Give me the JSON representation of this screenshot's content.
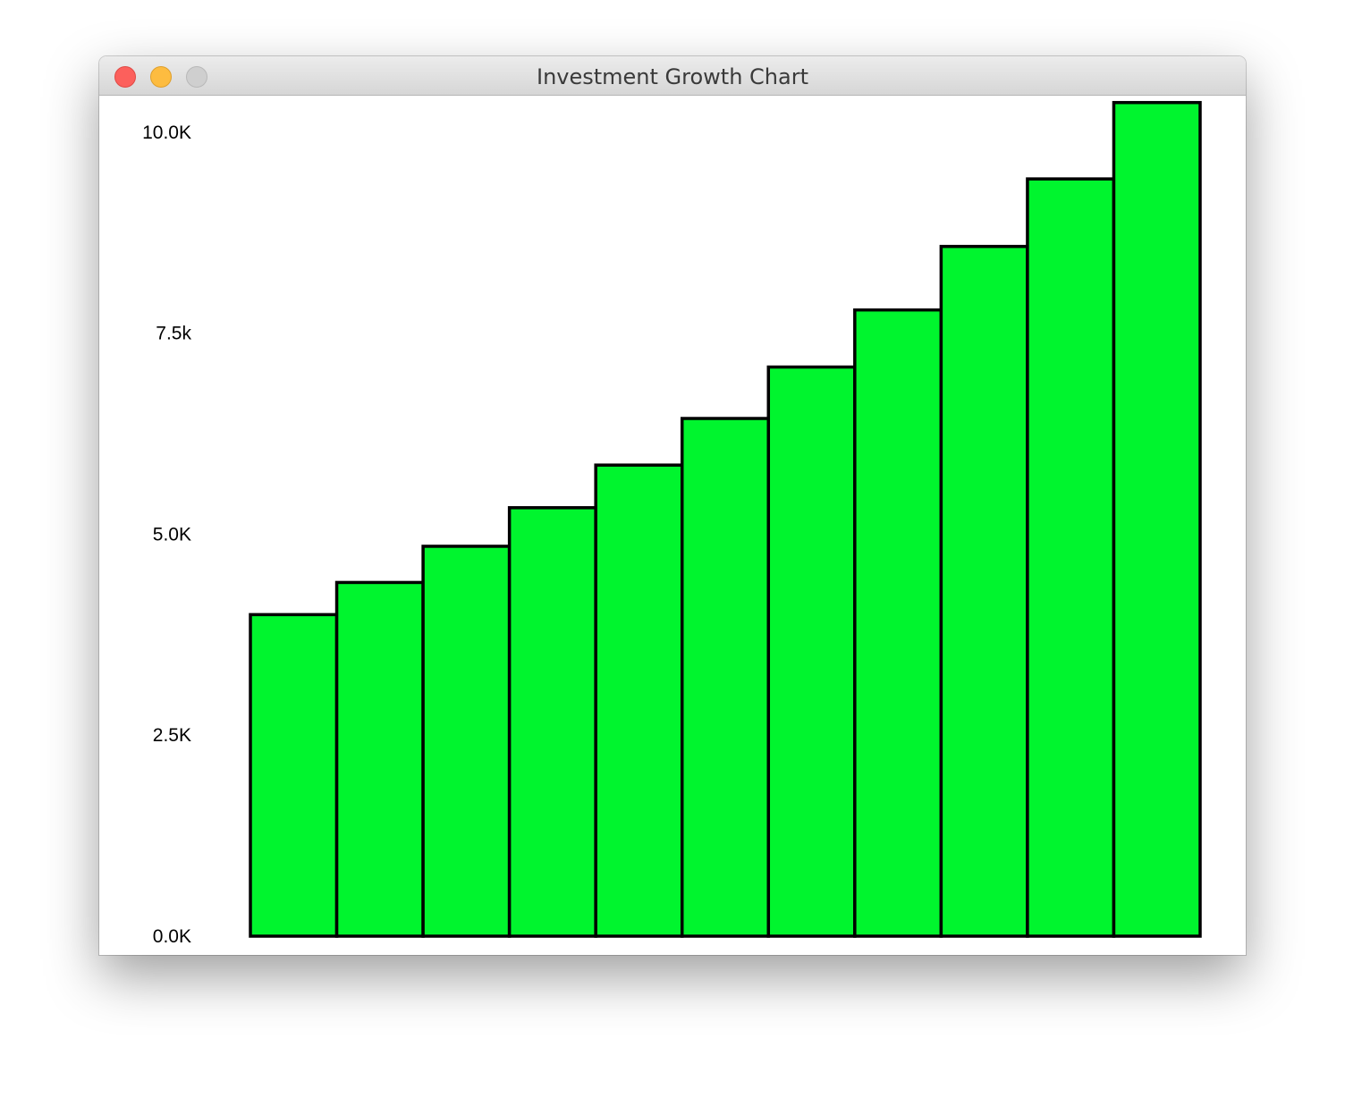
{
  "window": {
    "title": "Investment Growth Chart",
    "controls": {
      "close": "close-icon",
      "minimize": "minimize-icon",
      "zoom": "zoom-icon"
    }
  },
  "colors": {
    "bar_fill": "#00f52e",
    "bar_stroke": "#000000"
  },
  "chart_data": {
    "type": "bar",
    "title": "",
    "xlabel": "",
    "ylabel": "",
    "ylim": [
      0,
      10400
    ],
    "yticks": [
      0,
      2500,
      5000,
      7500,
      10000
    ],
    "ytick_labels": [
      "0.0K",
      "2.5K",
      "5.0K",
      "7.5k",
      "10.0K"
    ],
    "grid": false,
    "legend": "none",
    "values": [
      4000,
      4400,
      4850,
      5330,
      5860,
      6440,
      7080,
      7790,
      8580,
      9420,
      10370
    ]
  }
}
